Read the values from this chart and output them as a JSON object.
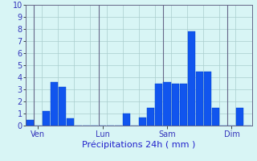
{
  "xlabel": "Précipitations 24h ( mm )",
  "ylim": [
    0,
    10
  ],
  "yticks": [
    0,
    1,
    2,
    3,
    4,
    5,
    6,
    7,
    8,
    9,
    10
  ],
  "background_color": "#d8f5f5",
  "bar_color": "#1155ee",
  "bar_edge_color": "#0044cc",
  "grid_color": "#aacece",
  "tick_label_color": "#3333bb",
  "num_bars": 28,
  "bar_values": [
    0.5,
    0.0,
    1.2,
    3.6,
    3.2,
    0.6,
    0.0,
    0.0,
    0.0,
    0.0,
    0.0,
    0.0,
    1.0,
    0.0,
    0.7,
    1.5,
    3.5,
    3.6,
    3.5,
    3.5,
    7.8,
    4.5,
    4.5,
    1.5,
    0.0,
    0.0,
    1.5,
    0.0
  ],
  "day_labels": [
    "Ven",
    "Lun",
    "Sam",
    "Dim"
  ],
  "day_positions": [
    1,
    9,
    17,
    25
  ],
  "tick_label_fontsize": 7,
  "xlabel_fontsize": 8,
  "xlabel_color": "#2222cc",
  "spine_color": "#666688",
  "vline_color": "#666688"
}
